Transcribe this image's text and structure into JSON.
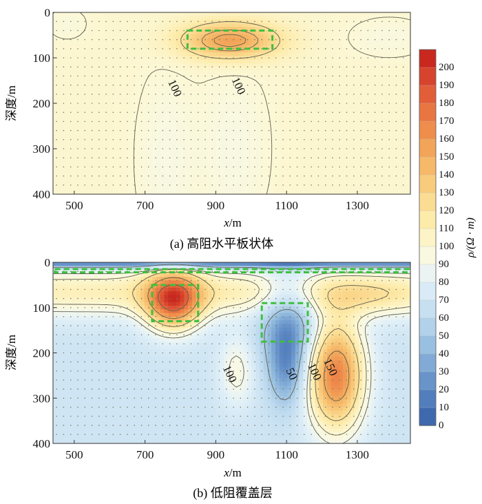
{
  "panels": [
    {
      "caption": "(a) 高阻水平板状体",
      "ylabel": "深度/m",
      "xlabel_italic": "x",
      "xlabel_unit": "/m",
      "xticks": [
        500,
        700,
        900,
        1100,
        1300
      ],
      "yticks": [
        0,
        100,
        200,
        300,
        400
      ],
      "xlim": [
        440,
        1450
      ],
      "ylim": [
        0,
        400
      ],
      "contour_labels": [
        {
          "text": "100",
          "x": 775,
          "y": 170
        },
        {
          "text": "100",
          "x": 955,
          "y": 165
        }
      ],
      "highlight_box": {
        "x0": 820,
        "x1": 1060,
        "y0": 40,
        "y1": 80
      }
    },
    {
      "caption": "(b) 低阻覆盖层",
      "ylabel": "深度/m",
      "xlabel_italic": "x",
      "xlabel_unit": "/m",
      "xticks": [
        500,
        700,
        900,
        1100,
        1300
      ],
      "yticks": [
        0,
        100,
        200,
        300,
        400
      ],
      "xlim": [
        440,
        1450
      ],
      "ylim": [
        0,
        400
      ],
      "contour_labels": [
        {
          "text": "100",
          "x": 930,
          "y": 250
        },
        {
          "text": "50",
          "x": 1105,
          "y": 250
        },
        {
          "text": "100",
          "x": 1170,
          "y": 245
        },
        {
          "text": "150",
          "x": 1215,
          "y": 235
        }
      ],
      "highlight_boxes": [
        {
          "x0": 445,
          "x1": 1445,
          "y0": 15,
          "y1": 22
        },
        {
          "x0": 720,
          "x1": 850,
          "y0": 50,
          "y1": 130
        },
        {
          "x0": 1030,
          "x1": 1160,
          "y0": 90,
          "y1": 175
        }
      ]
    }
  ],
  "colorbar": {
    "label": "ρ/(Ω · m)",
    "ticks": [
      200,
      190,
      180,
      170,
      160,
      150,
      140,
      130,
      120,
      110,
      100,
      90,
      80,
      70,
      60,
      50,
      40,
      30,
      20,
      10,
      0
    ]
  },
  "chart_data": [
    {
      "type": "heatmap",
      "title": "(a) 高阻水平板状体",
      "xlabel": "x/m",
      "ylabel": "深度/m",
      "xlim": [
        440,
        1450
      ],
      "ylim": [
        0,
        400
      ],
      "y_inverted": true,
      "colorbar_range": [
        0,
        205
      ],
      "background_value": 102,
      "anomalies": [
        {
          "x": 940,
          "y": 62,
          "sx": 95,
          "sy": 28,
          "amp": 55
        },
        {
          "x": 760,
          "y": 320,
          "sx": 55,
          "sy": 130,
          "amp": -8
        },
        {
          "x": 950,
          "y": 300,
          "sx": 65,
          "sy": 120,
          "amp": -8
        },
        {
          "x": 1390,
          "y": 55,
          "sx": 80,
          "sy": 30,
          "amp": -6
        },
        {
          "x": 480,
          "y": 25,
          "sx": 40,
          "sy": 25,
          "amp": -5
        }
      ],
      "contour_levels": [
        90,
        100,
        120,
        140,
        150
      ],
      "contour_labels": [
        "100",
        "100"
      ]
    },
    {
      "type": "heatmap",
      "title": "(b) 低阻覆盖层",
      "xlabel": "x/m",
      "ylabel": "深度/m",
      "xlim": [
        440,
        1450
      ],
      "ylim": [
        0,
        400
      ],
      "y_inverted": true,
      "colorbar_range": [
        0,
        205
      ],
      "background_value": 70,
      "anomalies": [
        {
          "x": 900,
          "y": 0,
          "sx": 2000,
          "sy": 10,
          "amp": -62
        },
        {
          "x": 900,
          "y": 65,
          "sx": 2000,
          "sy": 38,
          "amp": 40
        },
        {
          "x": 780,
          "y": 85,
          "sx": 55,
          "sy": 45,
          "amp": 100
        },
        {
          "x": 1105,
          "y": 130,
          "sx": 55,
          "sy": 75,
          "amp": -45
        },
        {
          "x": 1100,
          "y": 240,
          "sx": 35,
          "sy": 60,
          "amp": -35
        },
        {
          "x": 1240,
          "y": 250,
          "sx": 55,
          "sy": 85,
          "amp": 100
        },
        {
          "x": 960,
          "y": 240,
          "sx": 35,
          "sy": 55,
          "amp": 25
        },
        {
          "x": 1330,
          "y": 75,
          "sx": 80,
          "sy": 28,
          "amp": 15
        }
      ],
      "contour_levels": [
        50,
        90,
        100,
        120,
        150,
        180
      ],
      "contour_labels": [
        "100",
        "50",
        "100",
        "150"
      ]
    }
  ]
}
